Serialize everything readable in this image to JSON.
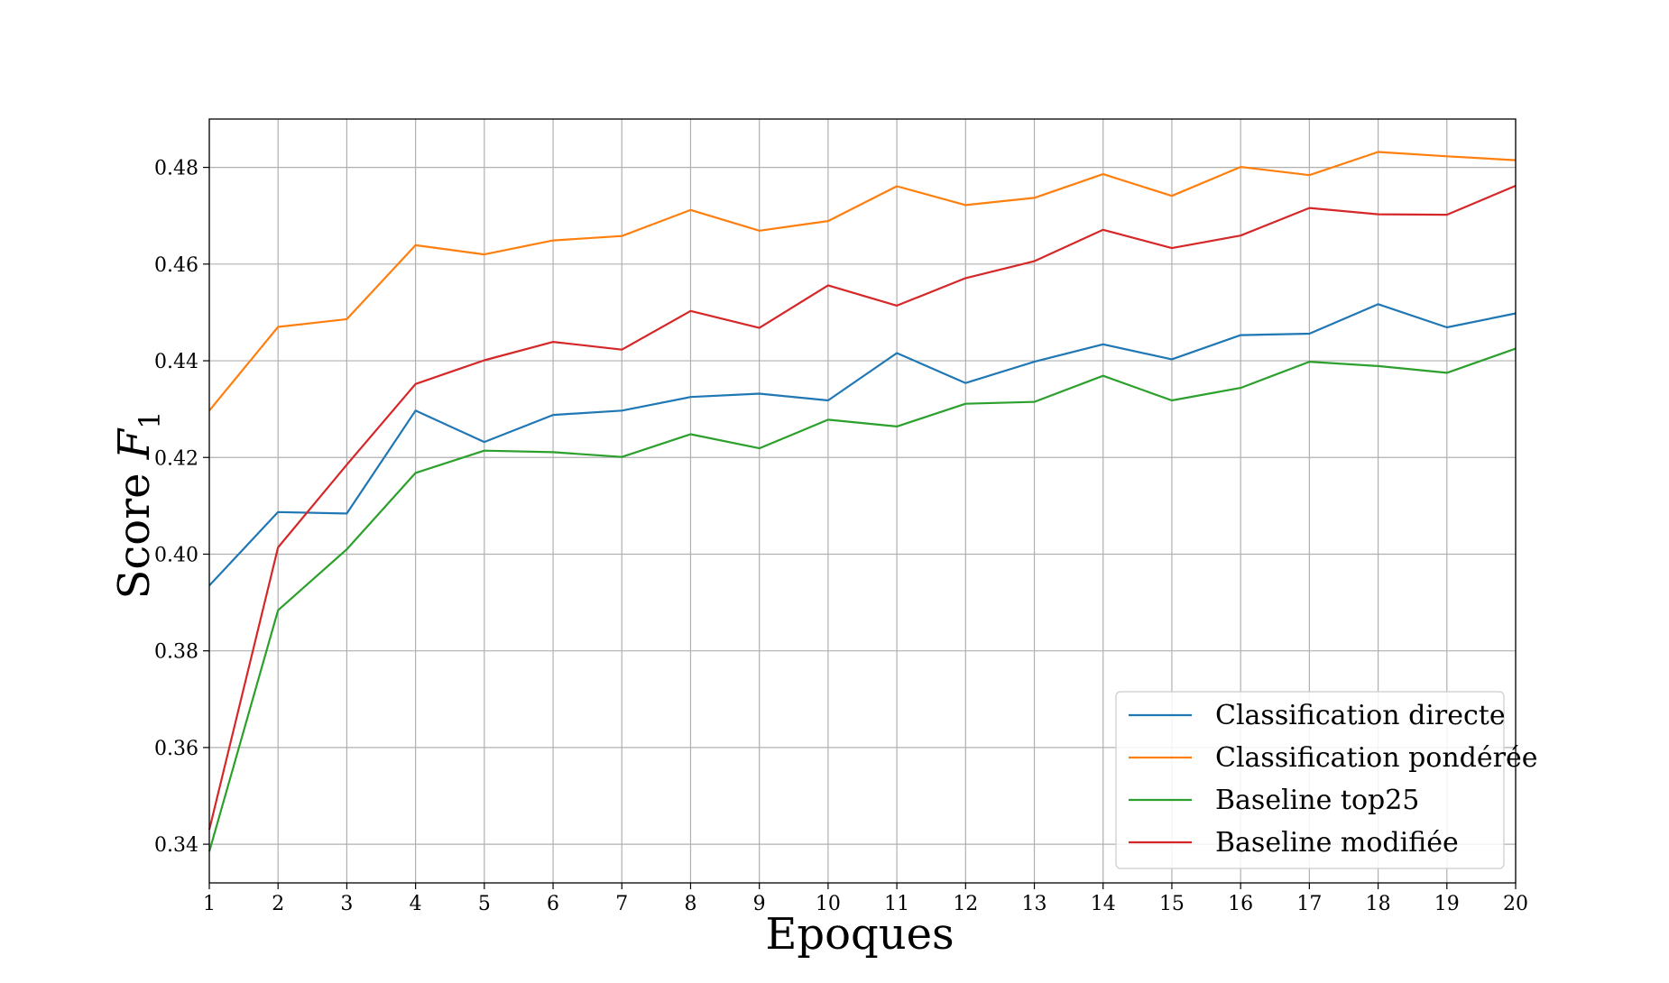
{
  "chart_data": {
    "type": "line",
    "title": "",
    "xlabel": "Epoques",
    "ylabel": {
      "prefix": "Score ",
      "symbol": "F",
      "subscript": "1"
    },
    "x": [
      1,
      2,
      3,
      4,
      5,
      6,
      7,
      8,
      9,
      10,
      11,
      12,
      13,
      14,
      15,
      16,
      17,
      18,
      19,
      20
    ],
    "xlim": [
      1,
      20
    ],
    "ylim": [
      0.332,
      0.49
    ],
    "yticks": [
      "0.34",
      "0.36",
      "0.38",
      "0.40",
      "0.42",
      "0.44",
      "0.46",
      "0.48"
    ],
    "grid": true,
    "legend_position": "lower-right",
    "series": [
      {
        "name": "Classification directe",
        "color": "#1f77b4",
        "values": [
          0.3935,
          0.4087,
          0.4084,
          0.4297,
          0.4232,
          0.4288,
          0.4297,
          0.4325,
          0.4332,
          0.4318,
          0.4416,
          0.4354,
          0.4398,
          0.4434,
          0.4403,
          0.4453,
          0.4456,
          0.4517,
          0.4469,
          0.4498
        ]
      },
      {
        "name": "Classification pondérée",
        "color": "#ff7f0e",
        "values": [
          0.4297,
          0.447,
          0.4486,
          0.4639,
          0.462,
          0.4649,
          0.4658,
          0.4712,
          0.4669,
          0.4689,
          0.4761,
          0.4722,
          0.4737,
          0.4786,
          0.4741,
          0.4801,
          0.4784,
          0.4832,
          0.4823,
          0.4815
        ]
      },
      {
        "name": "Baseline top25",
        "color": "#2ca02c",
        "values": [
          0.3385,
          0.3884,
          0.401,
          0.4168,
          0.4214,
          0.4211,
          0.4201,
          0.4248,
          0.4219,
          0.4278,
          0.4264,
          0.4311,
          0.4315,
          0.4369,
          0.4318,
          0.4344,
          0.4398,
          0.4389,
          0.4375,
          0.4425
        ]
      },
      {
        "name": "Baseline modifiée",
        "color": "#d62728",
        "values": [
          0.343,
          0.4014,
          0.4185,
          0.4352,
          0.4401,
          0.4439,
          0.4423,
          0.4503,
          0.4468,
          0.4556,
          0.4514,
          0.4571,
          0.4606,
          0.4671,
          0.4633,
          0.4659,
          0.4716,
          0.4703,
          0.4702,
          0.4762
        ]
      }
    ]
  }
}
